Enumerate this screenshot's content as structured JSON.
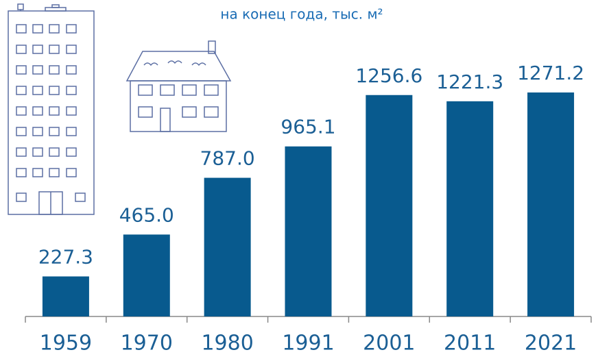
{
  "chart_data": {
    "type": "bar",
    "title": "на конец года, тыс. м²",
    "categories": [
      "1959",
      "1970",
      "1980",
      "1991",
      "2001",
      "2011",
      "2021"
    ],
    "values": [
      227.3,
      465.0,
      787.0,
      965.1,
      1256.6,
      1221.3,
      1271.2
    ],
    "value_labels": [
      "227.3",
      "465.0",
      "787.0",
      "965.1",
      "1256.6",
      "1221.3",
      "1271.2"
    ],
    "color": "#085a8e"
  }
}
